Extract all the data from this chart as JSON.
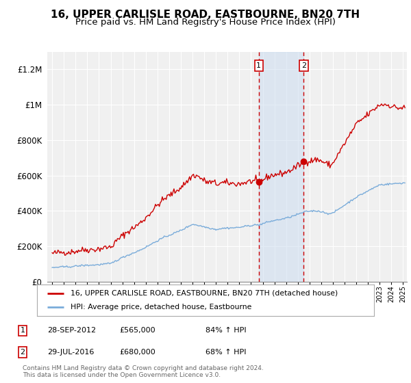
{
  "title": "16, UPPER CARLISLE ROAD, EASTBOURNE, BN20 7TH",
  "subtitle": "Price paid vs. HM Land Registry's House Price Index (HPI)",
  "title_fontsize": 11,
  "subtitle_fontsize": 9.5,
  "ylim": [
    0,
    1300000
  ],
  "yticks": [
    0,
    200000,
    400000,
    600000,
    800000,
    1000000,
    1200000
  ],
  "ytick_labels": [
    "£0",
    "£200K",
    "£400K",
    "£600K",
    "£800K",
    "£1M",
    "£1.2M"
  ],
  "red_line_color": "#cc0000",
  "blue_line_color": "#7aacda",
  "purchase1_price": 565000,
  "purchase1_hpi_pct": "84%",
  "purchase1_date_str": "28-SEP-2012",
  "purchase2_price": 680000,
  "purchase2_hpi_pct": "68%",
  "purchase2_date_str": "29-JUL-2016",
  "legend_label_red": "16, UPPER CARLISLE ROAD, EASTBOURNE, BN20 7TH (detached house)",
  "legend_label_blue": "HPI: Average price, detached house, Eastbourne",
  "footnote": "Contains HM Land Registry data © Crown copyright and database right 2024.\nThis data is licensed under the Open Government Licence v3.0.",
  "shaded_color": "#ccddf0",
  "shaded_alpha": 0.55,
  "background_color": "#f0f0f0"
}
